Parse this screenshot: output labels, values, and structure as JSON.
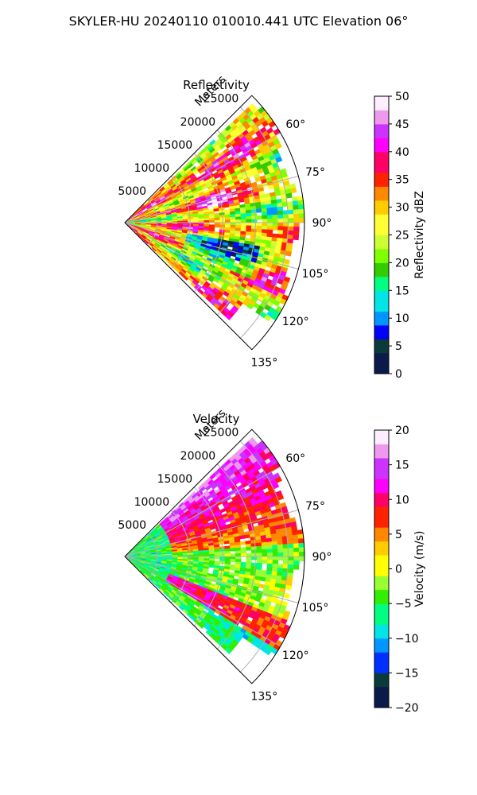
{
  "title": "SKYLER-HU  20240110  010010.441 UTC Elevation 06°",
  "chart_data": [
    {
      "type": "polar-sector",
      "title": "Reflectivity",
      "radial_label": "Meters",
      "radial_ticks": [
        5000,
        10000,
        15000,
        20000,
        25000
      ],
      "radial_tick_labels": [
        "5000",
        "10000",
        "15000",
        "20000",
        "25000"
      ],
      "radial_max": 27500,
      "azimuth_range_deg": [
        45,
        135
      ],
      "azimuth_ticks_deg": [
        60,
        75,
        90,
        105,
        120,
        135
      ],
      "azimuth_tick_labels": [
        "60°",
        "75°",
        "90°",
        "105°",
        "120°",
        "135°"
      ],
      "grid": true,
      "colormap": "rainbow-dbz",
      "colorbar": {
        "label": "Reflectivity dBZ",
        "range": [
          0,
          50
        ],
        "ticks": [
          0,
          5,
          10,
          15,
          20,
          25,
          30,
          35,
          40,
          45,
          50
        ],
        "tick_labels": [
          "0",
          "5",
          "10",
          "15",
          "20",
          "25",
          "30",
          "35",
          "40",
          "45",
          "50"
        ]
      }
    },
    {
      "type": "polar-sector",
      "title": "Velocity",
      "radial_label": "Meters",
      "radial_ticks": [
        5000,
        10000,
        15000,
        20000,
        25000
      ],
      "radial_tick_labels": [
        "5000",
        "10000",
        "15000",
        "20000",
        "25000"
      ],
      "radial_max": 27500,
      "azimuth_range_deg": [
        45,
        135
      ],
      "azimuth_ticks_deg": [
        60,
        75,
        90,
        105,
        120,
        135
      ],
      "azimuth_tick_labels": [
        "60°",
        "75°",
        "90°",
        "105°",
        "120°",
        "135°"
      ],
      "grid": true,
      "colormap": "rainbow-velocity",
      "colorbar": {
        "label": "Velocity (m/s)",
        "range": [
          -20,
          20
        ],
        "ticks": [
          -20,
          -15,
          -10,
          -5,
          0,
          5,
          10,
          15,
          20
        ],
        "tick_labels": [
          "−20",
          "−15",
          "−10",
          "−5",
          "0",
          "5",
          "10",
          "15",
          "20"
        ]
      }
    }
  ],
  "colormaps": {
    "rainbow-dbz": [
      "#0a1a4a",
      "#0b3a3a",
      "#0000ff",
      "#0096ff",
      "#00e6e6",
      "#00ff80",
      "#33cc00",
      "#7fff00",
      "#ccff33",
      "#ffff33",
      "#ffcc00",
      "#ff8800",
      "#ff2200",
      "#ff0066",
      "#ff00ff",
      "#cc33ff",
      "#ee99ee",
      "#ffeeff"
    ],
    "rainbow-velocity": [
      "#0a1a4a",
      "#0b3a3a",
      "#0030ff",
      "#0096ff",
      "#00e6e6",
      "#00ff80",
      "#33ee00",
      "#99ff33",
      "#ffff00",
      "#ffcc00",
      "#ff8800",
      "#ff2200",
      "#ff0066",
      "#ff00ff",
      "#cc33ff",
      "#ee99ee",
      "#ffeeff"
    ]
  }
}
